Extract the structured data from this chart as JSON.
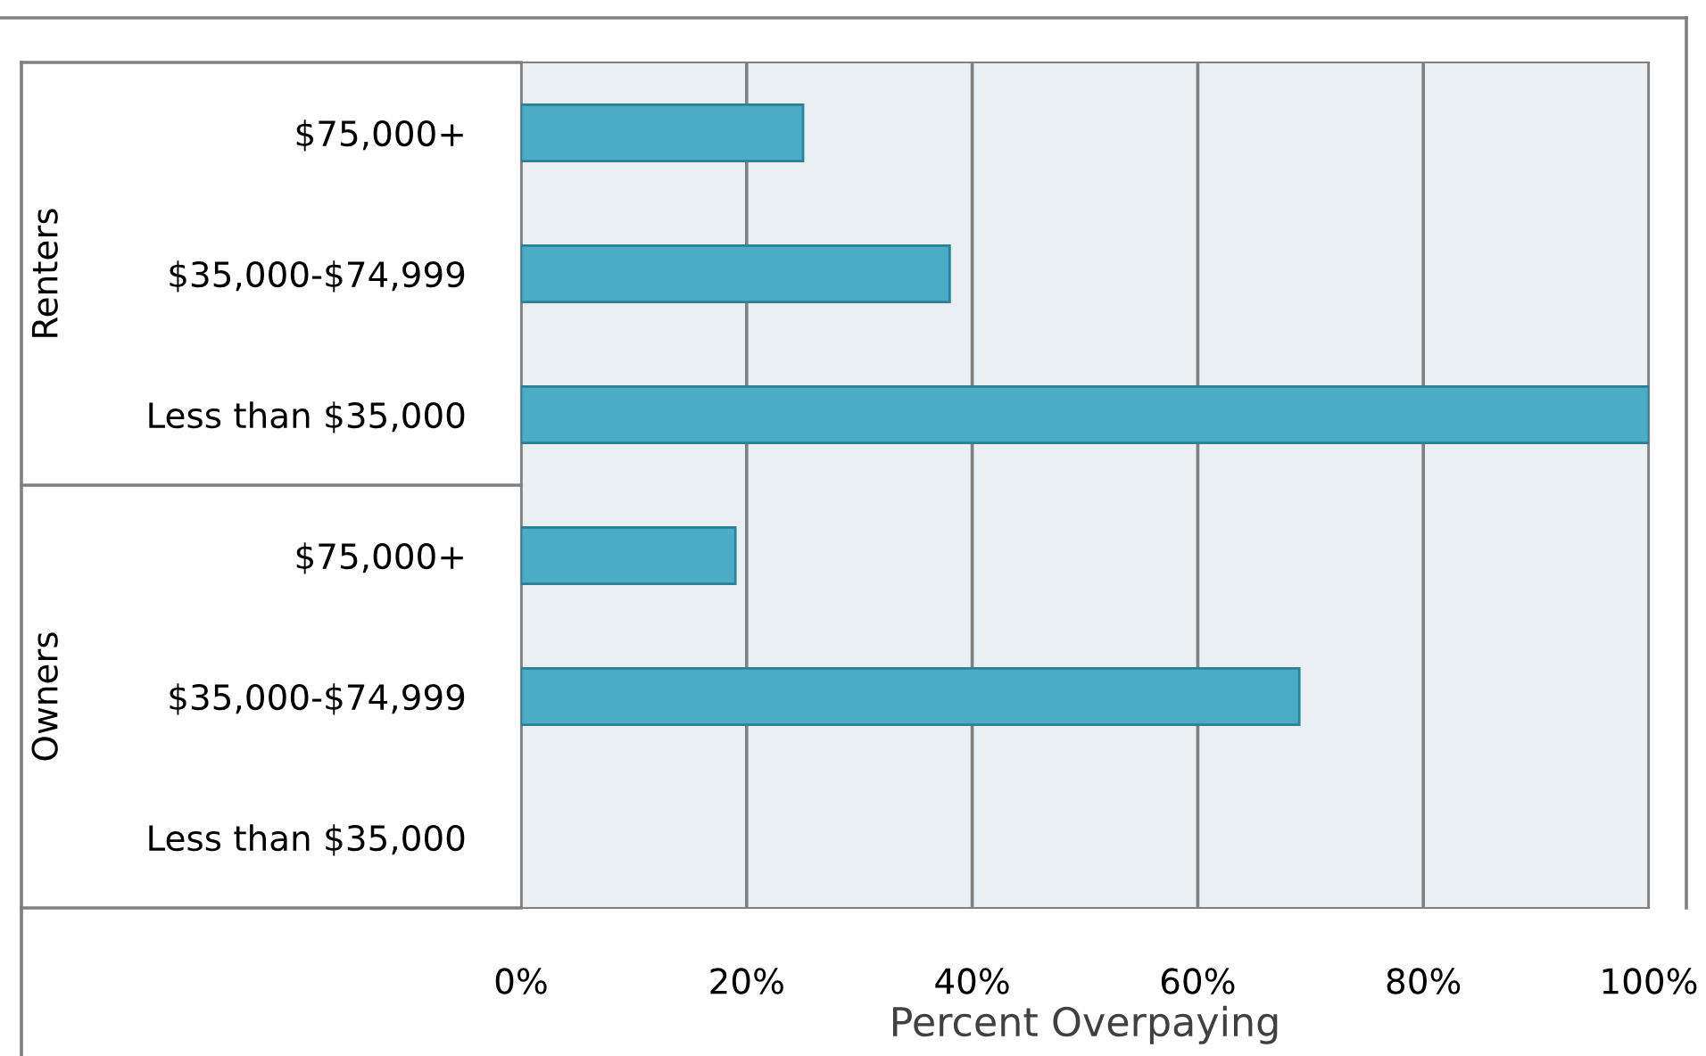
{
  "chart_data": {
    "type": "bar",
    "orientation": "horizontal",
    "xlabel": "Percent Overpaying",
    "categories": [
      "$75,000+",
      "$35,000-$74,999",
      "Less than $35,000",
      "$75,000+",
      "$35,000-$74,999",
      "Less than $35,000"
    ],
    "values": [
      25,
      38,
      100,
      19,
      69,
      null
    ],
    "color": "#4bacc6",
    "xlim": [
      0,
      100
    ],
    "xticks": [
      {
        "value": 0,
        "label": "0%"
      },
      {
        "value": 20,
        "label": "20%"
      },
      {
        "value": 40,
        "label": "40%"
      },
      {
        "value": 60,
        "label": "60%"
      },
      {
        "value": 80,
        "label": "80%"
      },
      {
        "value": 100,
        "label": "100%"
      }
    ],
    "grid": "x",
    "annotations": [
      "Renters",
      "Owners"
    ]
  }
}
